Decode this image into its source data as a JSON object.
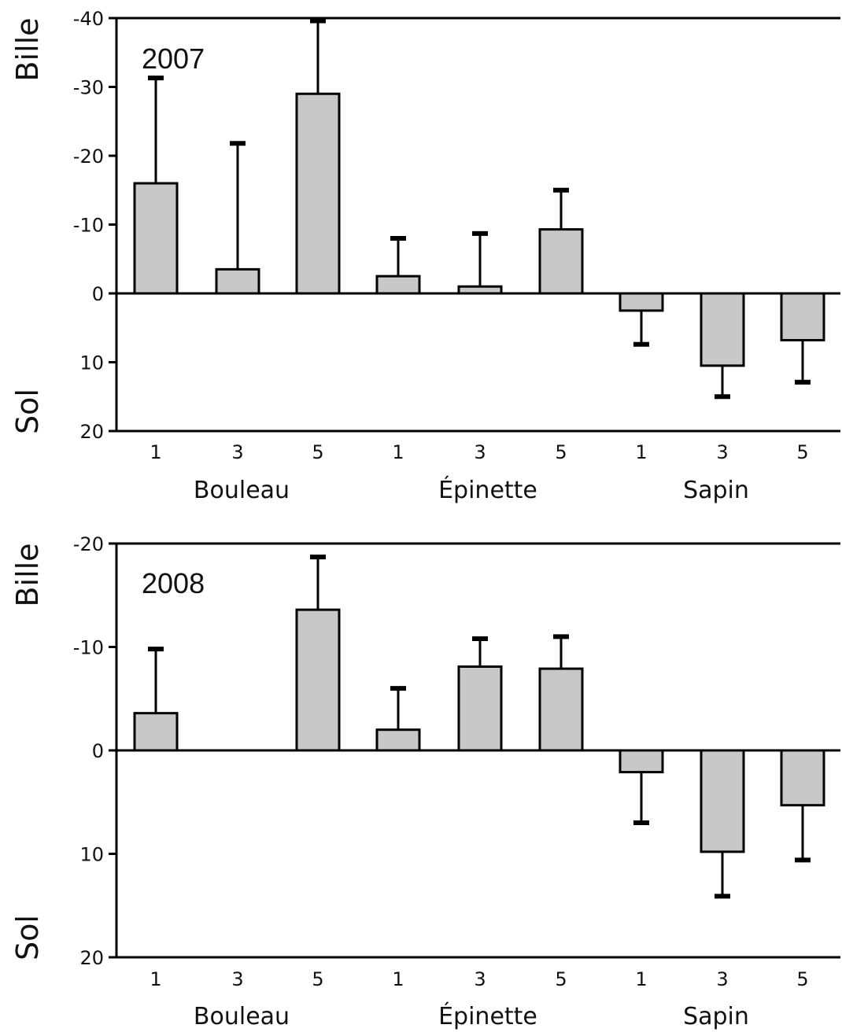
{
  "chart_data": [
    {
      "type": "bar",
      "title": "2007",
      "ylabel_top": "Bille",
      "ylabel_bottom": "Sol",
      "ylim": [
        -40,
        20
      ],
      "yticks": [
        -40,
        -30,
        -20,
        -10,
        0,
        10,
        20
      ],
      "groups": [
        "Bouleau",
        "Épinette",
        "Sapin"
      ],
      "categories": [
        "1",
        "3",
        "5",
        "1",
        "3",
        "5",
        "1",
        "3",
        "5"
      ],
      "values": [
        -16,
        -3.5,
        -29,
        -2.5,
        -1,
        -9.3,
        2.5,
        10.5,
        6.8
      ],
      "error_ends": [
        -31.3,
        -21.8,
        -39.6,
        -8,
        -8.7,
        -15,
        7.4,
        15,
        12.9
      ]
    },
    {
      "type": "bar",
      "title": "2008",
      "ylabel_top": "Bille",
      "ylabel_bottom": "Sol",
      "ylim": [
        -20,
        20
      ],
      "yticks": [
        -20,
        -10,
        0,
        10,
        20
      ],
      "groups": [
        "Bouleau",
        "Épinette",
        "Sapin"
      ],
      "categories": [
        "1",
        "3",
        "5",
        "1",
        "3",
        "5",
        "1",
        "3",
        "5"
      ],
      "values": [
        -3.6,
        null,
        -13.6,
        -2,
        -8.1,
        -7.9,
        2.1,
        9.8,
        5.3
      ],
      "error_ends": [
        -9.8,
        null,
        -18.7,
        -6,
        -10.8,
        -11,
        7,
        14.1,
        10.6
      ]
    }
  ]
}
